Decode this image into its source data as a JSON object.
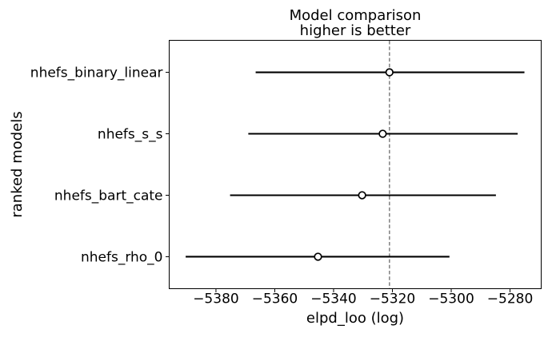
{
  "figure": {
    "title_line1": "Model comparison",
    "title_line2": "higher is better",
    "xlabel": "elpd_loo (log)",
    "ylabel": "ranked models"
  },
  "chart_data": {
    "type": "scatter",
    "variant": "forest_plot_model_comparison_errorbar",
    "title": "Model comparison\nhigher is better",
    "xlabel": "elpd_loo (log)",
    "ylabel": "ranked models",
    "categories": [
      "nhefs_binary_linear",
      "nhefs_s_s",
      "nhefs_bart_cate",
      "nhefs_rho_0"
    ],
    "series": [
      {
        "name": "elpd_loo",
        "values": [
          -5321.0,
          -5323.3,
          -5330.3,
          -5345.3
        ]
      },
      {
        "name": "ci_lower",
        "values": [
          -5366.5,
          -5369.0,
          -5375.2,
          -5390.3
        ]
      },
      {
        "name": "ci_upper",
        "values": [
          -5275.1,
          -5277.4,
          -5284.8,
          -5300.6
        ]
      }
    ],
    "reference_line_x": -5321.0,
    "xlim": [
      -5395.9,
      -5269.4
    ],
    "xticks": [
      -5380,
      -5360,
      -5340,
      -5320,
      -5300,
      -5280
    ],
    "xtick_labels": [
      "−5380",
      "−5360",
      "−5340",
      "−5320",
      "−5300",
      "−5280"
    ],
    "grid": false,
    "legend": null,
    "marker": "open-circle",
    "colors": {
      "errorbar": "#000000",
      "marker_edge": "#000000",
      "marker_face": "#ffffff",
      "reference_line": "#7f7f7f",
      "text": "#000000",
      "axes": "#000000",
      "background": "#ffffff"
    }
  }
}
